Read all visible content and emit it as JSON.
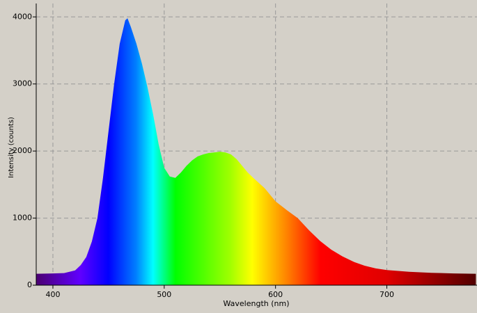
{
  "chart_data": {
    "type": "area",
    "xlabel": "Wavelength (nm)",
    "ylabel": "Intensity (counts)",
    "x": [
      385,
      400,
      410,
      420,
      425,
      430,
      435,
      440,
      445,
      450,
      455,
      460,
      465,
      467,
      470,
      475,
      480,
      485,
      490,
      495,
      500,
      505,
      510,
      515,
      520,
      525,
      530,
      535,
      540,
      545,
      550,
      555,
      560,
      565,
      570,
      575,
      580,
      590,
      600,
      610,
      620,
      630,
      640,
      650,
      660,
      670,
      680,
      690,
      700,
      720,
      740,
      760,
      780
    ],
    "values": [
      170,
      175,
      180,
      220,
      300,
      420,
      650,
      1000,
      1600,
      2300,
      3000,
      3600,
      3950,
      3980,
      3850,
      3600,
      3300,
      2950,
      2550,
      2100,
      1750,
      1620,
      1600,
      1680,
      1780,
      1860,
      1920,
      1950,
      1970,
      1980,
      1990,
      1980,
      1950,
      1880,
      1780,
      1680,
      1600,
      1450,
      1250,
      1120,
      1000,
      820,
      660,
      530,
      430,
      350,
      290,
      250,
      225,
      200,
      185,
      175,
      170
    ],
    "xlim": [
      385,
      781
    ],
    "ylim": [
      0,
      4200
    ],
    "xticks": [
      400,
      500,
      600,
      700
    ],
    "yticks": [
      0,
      1000,
      2000,
      3000,
      4000
    ],
    "grid": true
  }
}
